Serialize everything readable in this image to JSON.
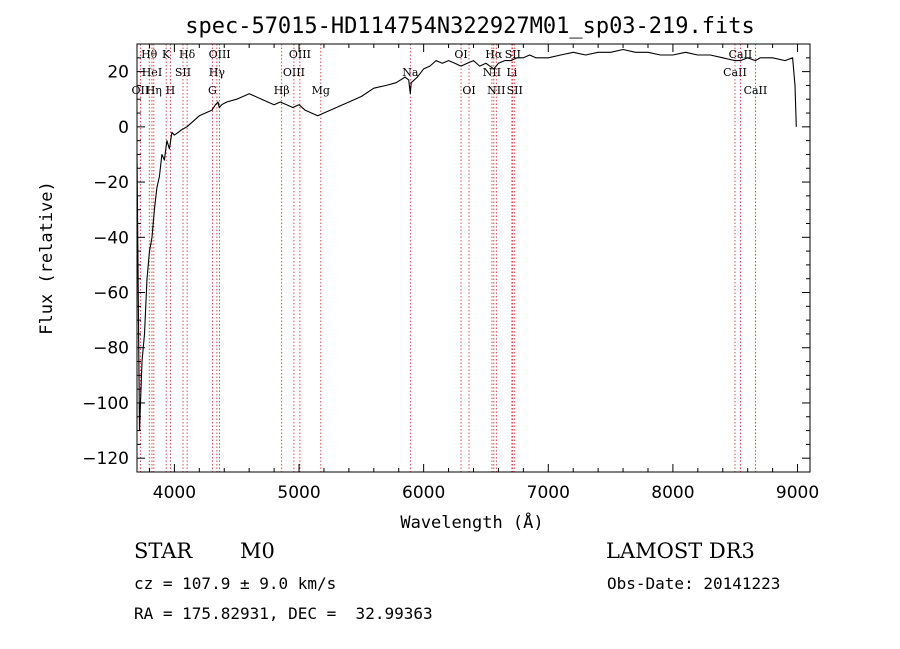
{
  "chart_data": {
    "type": "line",
    "title": "spec-57015-HD114754N322927M01_sp03-219.fits",
    "xlabel": "Wavelength (Å)",
    "ylabel": "Flux (relative)",
    "xlim": [
      3700,
      9100
    ],
    "ylim": [
      -125,
      30
    ],
    "x_ticks": [
      4000,
      5000,
      6000,
      7000,
      8000,
      9000
    ],
    "y_ticks": [
      -120,
      -100,
      -80,
      -60,
      -40,
      -20,
      0,
      20
    ],
    "x_tick_labels": [
      "4000",
      "5000",
      "6000",
      "7000",
      "8000",
      "9000"
    ],
    "y_tick_labels": [
      "−120",
      "−100",
      "−80",
      "−60",
      "−40",
      "−20",
      "0",
      "20"
    ],
    "y_tick_top_label": "20",
    "series": [
      {
        "name": "spectrum",
        "x": [
          3700,
          3720,
          3740,
          3760,
          3780,
          3800,
          3820,
          3840,
          3860,
          3880,
          3900,
          3920,
          3940,
          3960,
          3980,
          4000,
          4030,
          4060,
          4100,
          4150,
          4200,
          4250,
          4300,
          4330,
          4350,
          4360,
          4380,
          4420,
          4500,
          4600,
          4700,
          4800,
          4850,
          4900,
          4950,
          5000,
          5050,
          5100,
          5150,
          5200,
          5300,
          5400,
          5500,
          5600,
          5700,
          5780,
          5850,
          5880,
          5893,
          5900,
          5950,
          6000,
          6050,
          6100,
          6150,
          6200,
          6250,
          6300,
          6350,
          6400,
          6450,
          6500,
          6563,
          6600,
          6650,
          6700,
          6750,
          6800,
          6850,
          6900,
          7000,
          7100,
          7200,
          7300,
          7400,
          7500,
          7600,
          7700,
          7800,
          7900,
          8000,
          8100,
          8200,
          8300,
          8400,
          8498,
          8542,
          8600,
          8662,
          8700,
          8800,
          8900,
          8960,
          8980,
          8990
        ],
        "y": [
          -10,
          -110,
          -85,
          -75,
          -55,
          -45,
          -40,
          -30,
          -22,
          -18,
          -10,
          -12,
          -5,
          -8,
          -2,
          -3,
          -2,
          -1,
          0,
          2,
          4,
          5,
          6,
          8,
          9,
          7,
          8,
          9,
          10,
          12,
          10,
          8,
          9,
          8,
          7,
          8,
          6,
          5,
          4,
          5,
          7,
          9,
          11,
          14,
          15,
          16,
          18,
          17,
          12,
          16,
          18,
          21,
          22,
          24,
          23,
          24,
          23,
          22,
          23,
          24,
          22,
          23,
          21,
          23,
          24,
          24,
          25,
          25,
          26,
          25,
          25,
          26,
          27,
          26,
          27,
          27,
          28,
          27,
          27,
          26,
          26,
          27,
          26,
          26,
          25,
          24,
          24,
          25,
          24,
          25,
          25,
          24,
          25,
          15,
          0
        ]
      }
    ],
    "spectral_lines": [
      {
        "label": "OII",
        "x": 3727,
        "row": 3
      },
      {
        "label": "Hθ",
        "x": 3798,
        "row": 1
      },
      {
        "label": "HeI",
        "x": 3820,
        "row": 2
      },
      {
        "label": "Hη",
        "x": 3835,
        "row": 3
      },
      {
        "label": "K",
        "x": 3934,
        "row": 1
      },
      {
        "label": "SII",
        "x": 4069,
        "row": 2
      },
      {
        "label": "H",
        "x": 3968,
        "row": 3
      },
      {
        "label": "Hδ",
        "x": 4102,
        "row": 1
      },
      {
        "label": "OIII",
        "x": 4363,
        "row": 1
      },
      {
        "label": "Hγ",
        "x": 4341,
        "row": 2
      },
      {
        "label": "G",
        "x": 4305,
        "row": 3
      },
      {
        "label": "Hβ",
        "x": 4861,
        "row": 3
      },
      {
        "label": "OIII",
        "x": 5007,
        "row": 1
      },
      {
        "label": "OIII",
        "x": 4959,
        "row": 2
      },
      {
        "label": "Mg",
        "x": 5175,
        "row": 3
      },
      {
        "label": "Na",
        "x": 5893,
        "row": 2
      },
      {
        "label": "OI",
        "x": 6300,
        "row": 1
      },
      {
        "label": "OI",
        "x": 6364,
        "row": 3
      },
      {
        "label": "Hα",
        "x": 6563,
        "row": 1
      },
      {
        "label": "NII",
        "x": 6548,
        "row": 2
      },
      {
        "label": "NII",
        "x": 6583,
        "row": 3
      },
      {
        "label": "SII",
        "x": 6716,
        "row": 1
      },
      {
        "label": "Li",
        "x": 6708,
        "row": 2
      },
      {
        "label": "SII",
        "x": 6731,
        "row": 3
      },
      {
        "label": "CaII",
        "x": 8498,
        "row": 2
      },
      {
        "label": "CaII",
        "x": 8542,
        "row": 1
      },
      {
        "label": "CaII",
        "x": 8662,
        "row": 3
      }
    ]
  },
  "info": {
    "object_class": "STAR",
    "subclass": "M0",
    "survey": "LAMOST DR3",
    "cz": "cz = 107.9 ± 9.0 km/s",
    "obs_date": "Obs-Date: 20141223",
    "coords": "RA = 175.82931, DEC =  32.99363"
  },
  "colors": {
    "spectrum": "#000000",
    "line_marker": "#cc2222",
    "axis": "#000000"
  }
}
